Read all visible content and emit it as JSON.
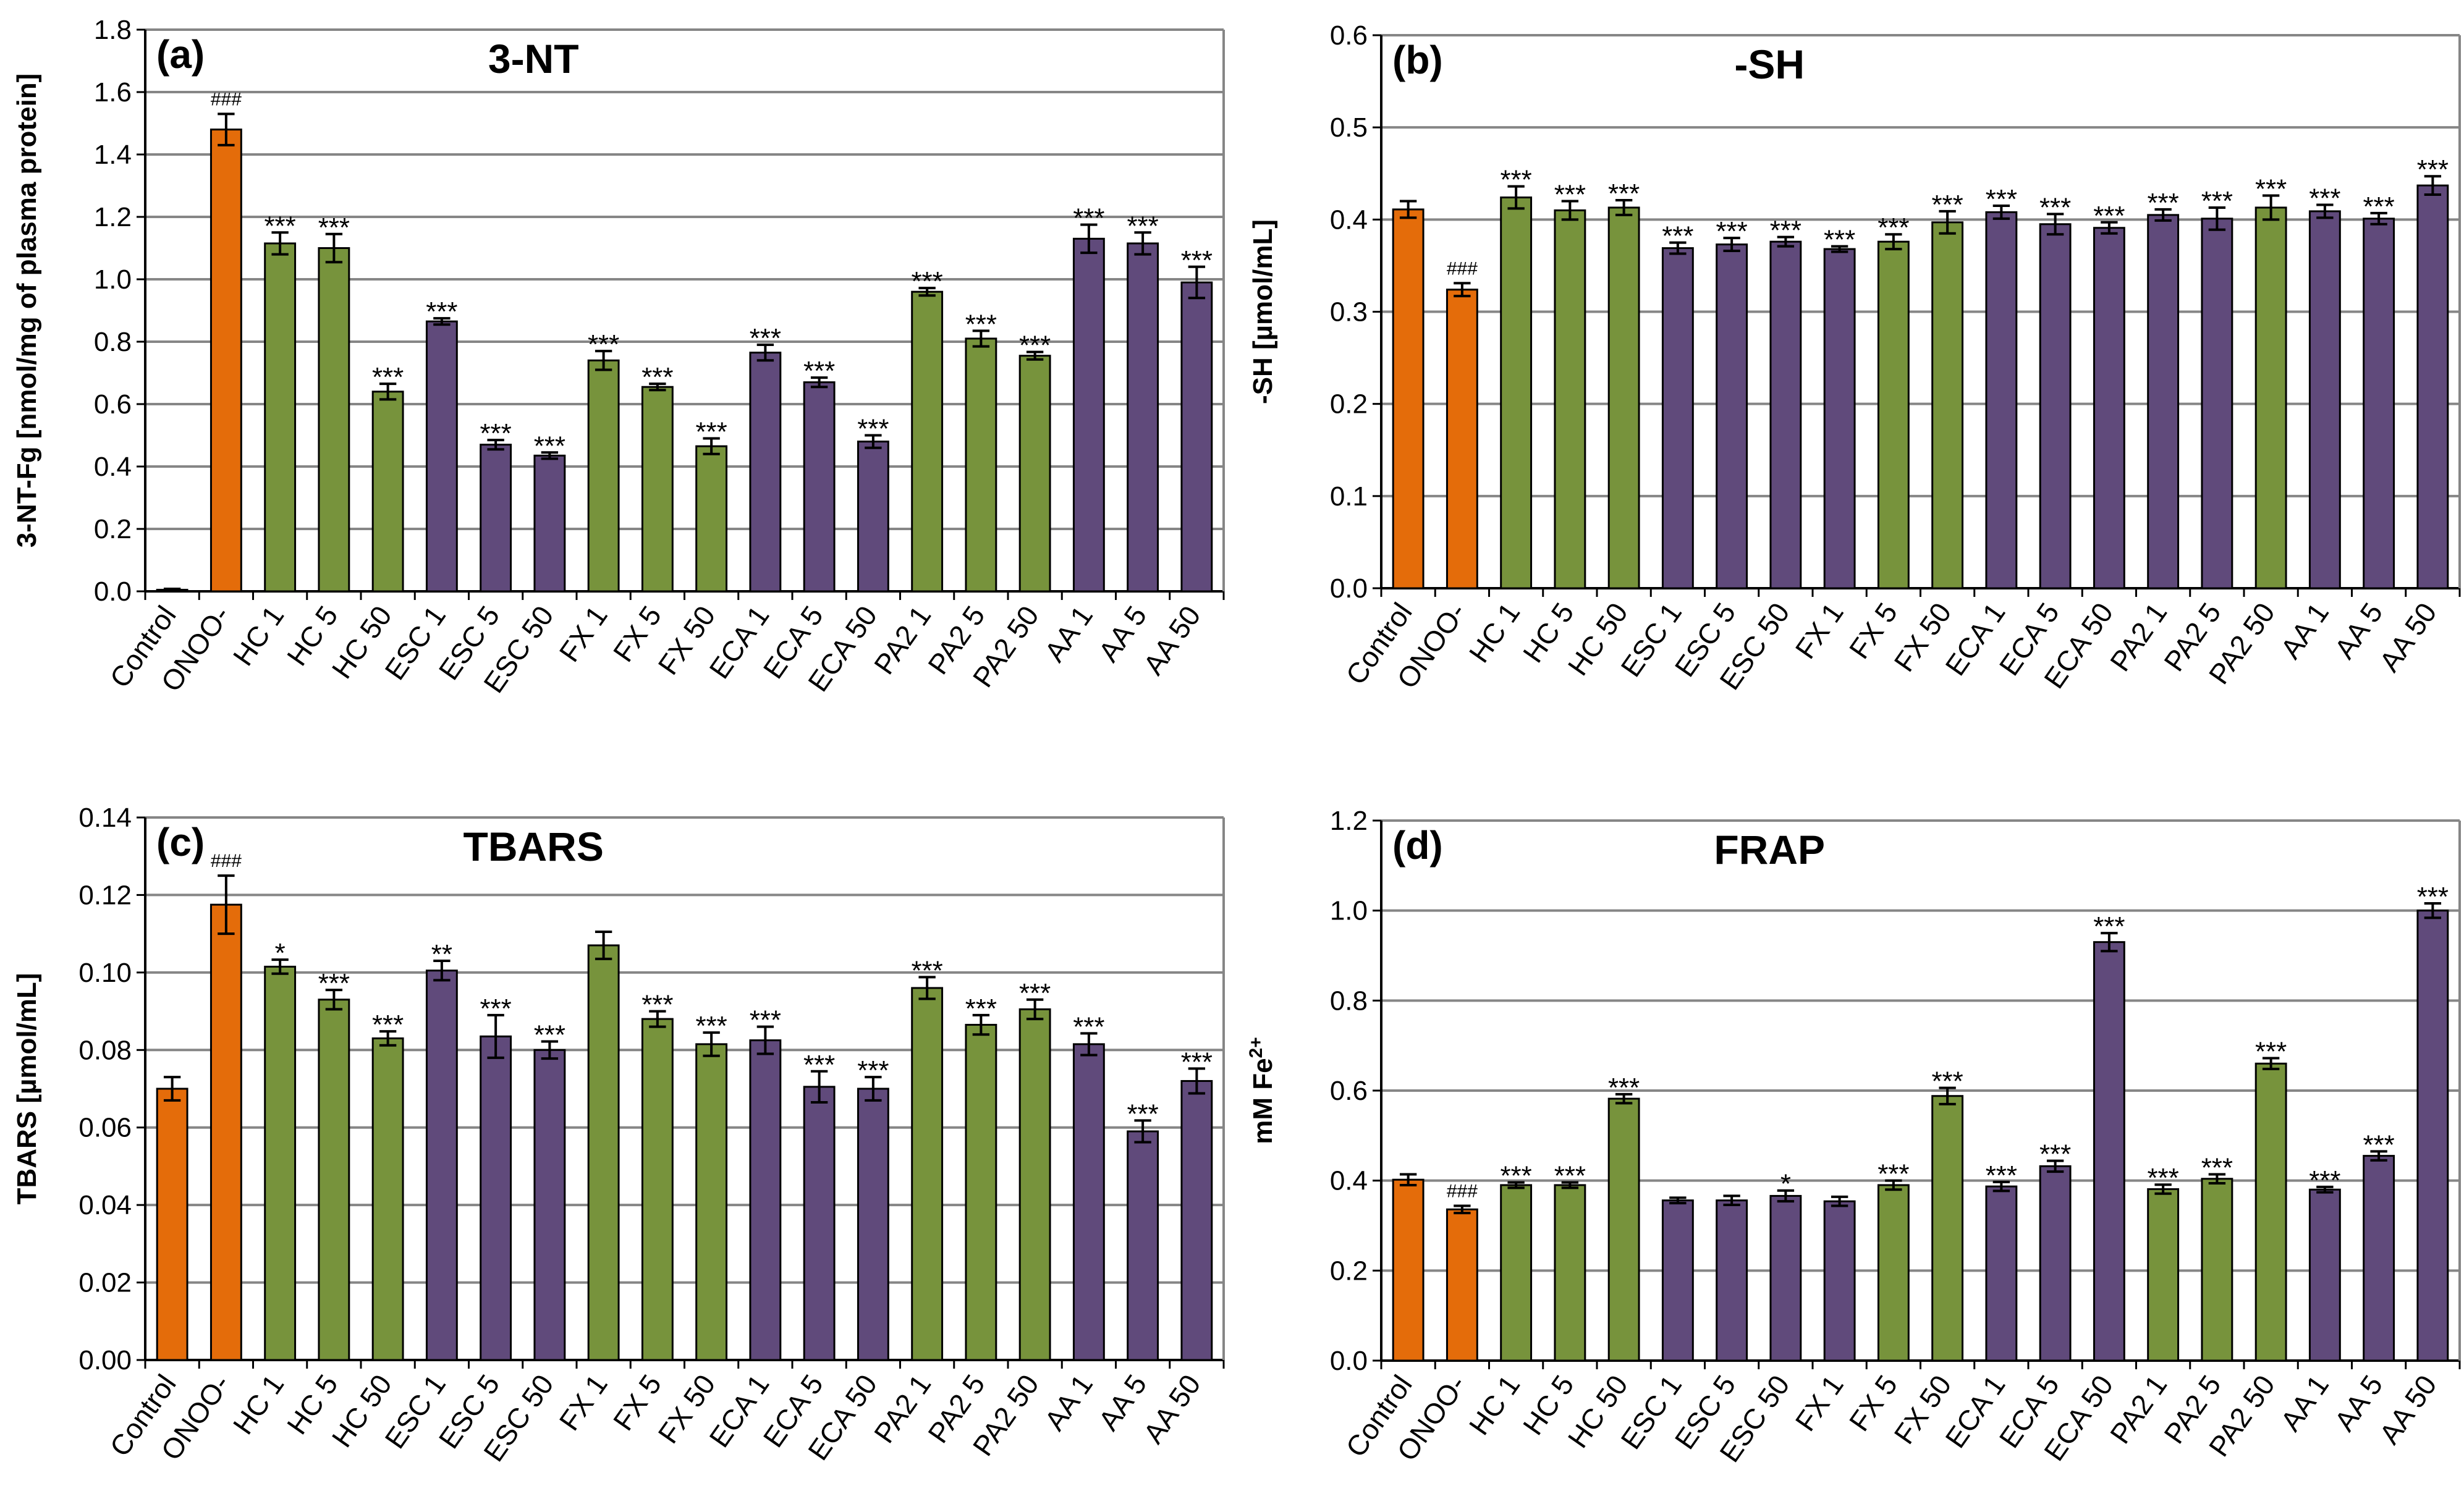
{
  "colors": {
    "control": "#E46C0A",
    "green": "#77933C",
    "purple": "#604A7B",
    "grid": "#868686",
    "axis": "#000000"
  },
  "chart_data": [
    {
      "id": "a",
      "type": "bar",
      "panel_label": "(a)",
      "title": "3-NT",
      "ylabel": "3-NT-Fg [nmol/mg of plasma protein]",
      "ylim": [
        0,
        1.8
      ],
      "yticks": [
        "0.0",
        "0.2",
        "0.4",
        "0.6",
        "0.8",
        "1.0",
        "1.2",
        "1.4",
        "1.6",
        "1.8"
      ],
      "categories": [
        "Control",
        "ONOO-",
        "HC 1",
        "HC 5",
        "HC 50",
        "ESC 1",
        "ESC 5",
        "ESC 50",
        "FX 1",
        "FX 5",
        "FX 50",
        "ECA 1",
        "ECA 5",
        "ECA 50",
        "PA2 1",
        "PA2 5",
        "PA2 50",
        "AA 1",
        "AA 5",
        "AA 50"
      ],
      "values": [
        0.005,
        1.48,
        1.115,
        1.1,
        0.64,
        0.865,
        0.47,
        0.435,
        0.74,
        0.655,
        0.465,
        0.765,
        0.67,
        0.48,
        0.96,
        0.81,
        0.755,
        1.13,
        1.115,
        0.99
      ],
      "errors": [
        0.003,
        0.05,
        0.035,
        0.045,
        0.025,
        0.01,
        0.015,
        0.01,
        0.03,
        0.01,
        0.025,
        0.025,
        0.015,
        0.02,
        0.012,
        0.025,
        0.012,
        0.045,
        0.035,
        0.05
      ],
      "colors": [
        "control",
        "control",
        "green",
        "green",
        "green",
        "purple",
        "purple",
        "purple",
        "green",
        "green",
        "green",
        "purple",
        "purple",
        "purple",
        "green",
        "green",
        "green",
        "purple",
        "purple",
        "purple"
      ],
      "annotations": [
        "",
        "###",
        "***",
        "***",
        "***",
        "***",
        "***",
        "***",
        "***",
        "***",
        "***",
        "***",
        "***",
        "***",
        "***",
        "***",
        "***",
        "***",
        "***",
        "***"
      ]
    },
    {
      "id": "b",
      "type": "bar",
      "panel_label": "(b)",
      "title": "-SH",
      "ylabel": "-SH [µmol/mL]",
      "ylim": [
        0,
        0.6
      ],
      "yticks": [
        "0.0",
        "0.1",
        "0.2",
        "0.3",
        "0.4",
        "0.5",
        "0.6"
      ],
      "categories": [
        "Control",
        "ONOO-",
        "HC 1",
        "HC 5",
        "HC 50",
        "ESC 1",
        "ESC 5",
        "ESC 50",
        "FX 1",
        "FX 5",
        "FX 50",
        "ECA 1",
        "ECA 5",
        "ECA 50",
        "PA2 1",
        "PA2 5",
        "PA2 50",
        "AA 1",
        "AA 5",
        "AA 50"
      ],
      "values": [
        0.411,
        0.324,
        0.424,
        0.41,
        0.413,
        0.369,
        0.373,
        0.376,
        0.368,
        0.376,
        0.397,
        0.408,
        0.395,
        0.391,
        0.405,
        0.401,
        0.413,
        0.409,
        0.401,
        0.437
      ],
      "errors": [
        0.009,
        0.007,
        0.012,
        0.01,
        0.008,
        0.006,
        0.007,
        0.005,
        0.003,
        0.008,
        0.012,
        0.007,
        0.011,
        0.006,
        0.006,
        0.012,
        0.013,
        0.007,
        0.006,
        0.01
      ],
      "colors": [
        "control",
        "control",
        "green",
        "green",
        "green",
        "purple",
        "purple",
        "purple",
        "purple",
        "green",
        "green",
        "purple",
        "purple",
        "purple",
        "purple",
        "purple",
        "green",
        "purple",
        "purple",
        "purple"
      ],
      "annotations": [
        "",
        "###",
        "***",
        "***",
        "***",
        "***",
        "***",
        "***",
        "***",
        "***",
        "***",
        "***",
        "***",
        "***",
        "***",
        "***",
        "***",
        "***",
        "***",
        "***"
      ]
    },
    {
      "id": "c",
      "type": "bar",
      "panel_label": "(c)",
      "title": "TBARS",
      "ylabel": "TBARS [µmol/mL]",
      "ylim": [
        0,
        0.14
      ],
      "yticks": [
        "0.00",
        "0.02",
        "0.04",
        "0.06",
        "0.08",
        "0.10",
        "0.12",
        "0.14"
      ],
      "categories": [
        "Control",
        "ONOO-",
        "HC 1",
        "HC 5",
        "HC 50",
        "ESC 1",
        "ESC 5",
        "ESC 50",
        "FX 1",
        "FX 5",
        "FX 50",
        "ECA 1",
        "ECA 5",
        "ECA 50",
        "PA2 1",
        "PA2 5",
        "PA2 50",
        "AA 1",
        "AA 5",
        "AA 50"
      ],
      "values": [
        0.07,
        0.1175,
        0.1015,
        0.093,
        0.083,
        0.1005,
        0.0835,
        0.08,
        0.107,
        0.088,
        0.0815,
        0.0825,
        0.0705,
        0.07,
        0.096,
        0.0865,
        0.0905,
        0.0815,
        0.059,
        0.072
      ],
      "errors": [
        0.003,
        0.0075,
        0.0018,
        0.0025,
        0.0018,
        0.0025,
        0.0055,
        0.0022,
        0.0035,
        0.002,
        0.003,
        0.0035,
        0.004,
        0.003,
        0.0028,
        0.0025,
        0.0025,
        0.0028,
        0.0028,
        0.0032
      ],
      "colors": [
        "control",
        "control",
        "green",
        "green",
        "green",
        "purple",
        "purple",
        "purple",
        "green",
        "green",
        "green",
        "purple",
        "purple",
        "purple",
        "green",
        "green",
        "green",
        "purple",
        "purple",
        "purple"
      ],
      "annotations": [
        "",
        "###",
        "*",
        "***",
        "***",
        "**",
        "***",
        "***",
        "",
        "***",
        "***",
        "***",
        "***",
        "***",
        "***",
        "***",
        "***",
        "***",
        "***",
        "***"
      ]
    },
    {
      "id": "d",
      "type": "bar",
      "panel_label": "(d)",
      "title": "FRAP",
      "ylabel": "mM Fe",
      "ylabel_sup": "2+",
      "ylim": [
        0,
        1.2
      ],
      "yticks": [
        "0.0",
        "0.2",
        "0.4",
        "0.6",
        "0.8",
        "1.0",
        "1.2"
      ],
      "categories": [
        "Control",
        "ONOO-",
        "HC 1",
        "HC 5",
        "HC 50",
        "ESC 1",
        "ESC 5",
        "ESC 50",
        "FX 1",
        "FX 5",
        "FX 50",
        "ECA 1",
        "ECA 5",
        "ECA 50",
        "PA2 1",
        "PA2 5",
        "PA2 50",
        "AA 1",
        "AA 5",
        "AA 50"
      ],
      "values": [
        0.402,
        0.336,
        0.39,
        0.39,
        0.582,
        0.356,
        0.356,
        0.366,
        0.354,
        0.39,
        0.588,
        0.387,
        0.432,
        0.93,
        0.381,
        0.404,
        0.66,
        0.38,
        0.455,
        1.0
      ],
      "errors": [
        0.012,
        0.008,
        0.006,
        0.006,
        0.01,
        0.006,
        0.01,
        0.012,
        0.01,
        0.01,
        0.018,
        0.01,
        0.012,
        0.02,
        0.01,
        0.01,
        0.012,
        0.006,
        0.01,
        0.016
      ],
      "colors": [
        "control",
        "control",
        "green",
        "green",
        "green",
        "purple",
        "purple",
        "purple",
        "purple",
        "green",
        "green",
        "purple",
        "purple",
        "purple",
        "green",
        "green",
        "green",
        "purple",
        "purple",
        "purple"
      ],
      "annotations": [
        "",
        "###",
        "***",
        "***",
        "***",
        "",
        "",
        "*",
        "",
        "***",
        "***",
        "***",
        "***",
        "***",
        "***",
        "***",
        "***",
        "***",
        "***",
        "***"
      ]
    }
  ]
}
